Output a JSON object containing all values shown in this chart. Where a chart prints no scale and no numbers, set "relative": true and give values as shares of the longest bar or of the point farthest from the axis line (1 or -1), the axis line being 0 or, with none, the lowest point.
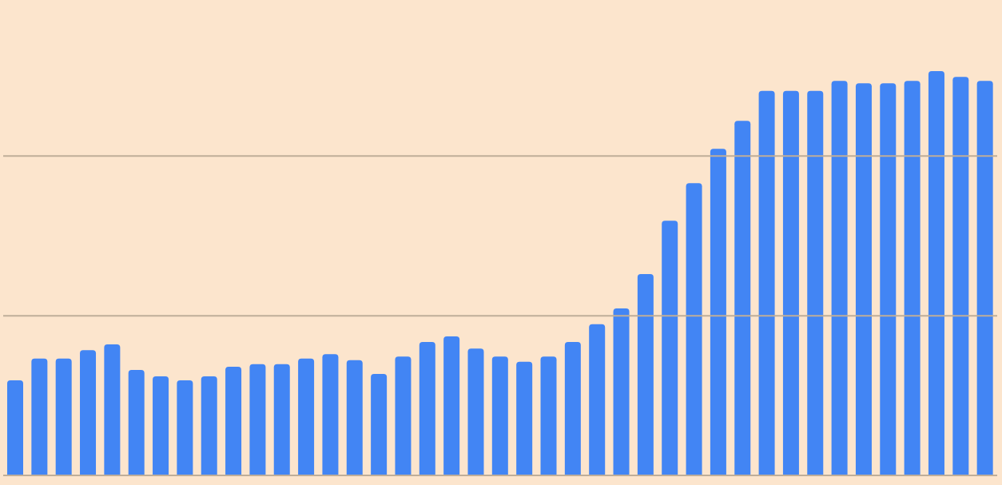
{
  "chart_data": {
    "type": "bar",
    "relative": true,
    "color": "#4285f4",
    "ref_lines": [
      {
        "axis": "y",
        "value": 0.395,
        "color": "#bfae99"
      },
      {
        "axis": "y",
        "value": 0.79,
        "color": "#bfae99"
      }
    ],
    "categories": [
      null,
      null,
      null,
      null,
      null,
      null,
      null,
      null,
      null,
      null,
      null,
      null,
      null,
      null,
      null,
      null,
      null,
      null,
      null,
      null,
      null,
      null,
      null,
      null,
      null,
      null,
      null,
      null,
      null,
      null,
      null,
      null,
      null,
      null,
      null,
      null,
      null,
      null,
      null,
      null,
      null
    ],
    "values": [
      0.235,
      0.289,
      0.289,
      0.31,
      0.324,
      0.261,
      0.245,
      0.235,
      0.245,
      0.269,
      0.275,
      0.275,
      0.289,
      0.3,
      0.285,
      0.251,
      0.294,
      0.33,
      0.344,
      0.314,
      0.294,
      0.281,
      0.294,
      0.33,
      0.374,
      0.413,
      0.498,
      0.63,
      0.723,
      0.808,
      0.877,
      0.951,
      0.951,
      0.951,
      0.976,
      0.97,
      0.97,
      0.976,
      1,
      0.986,
      0.976
    ]
  }
}
